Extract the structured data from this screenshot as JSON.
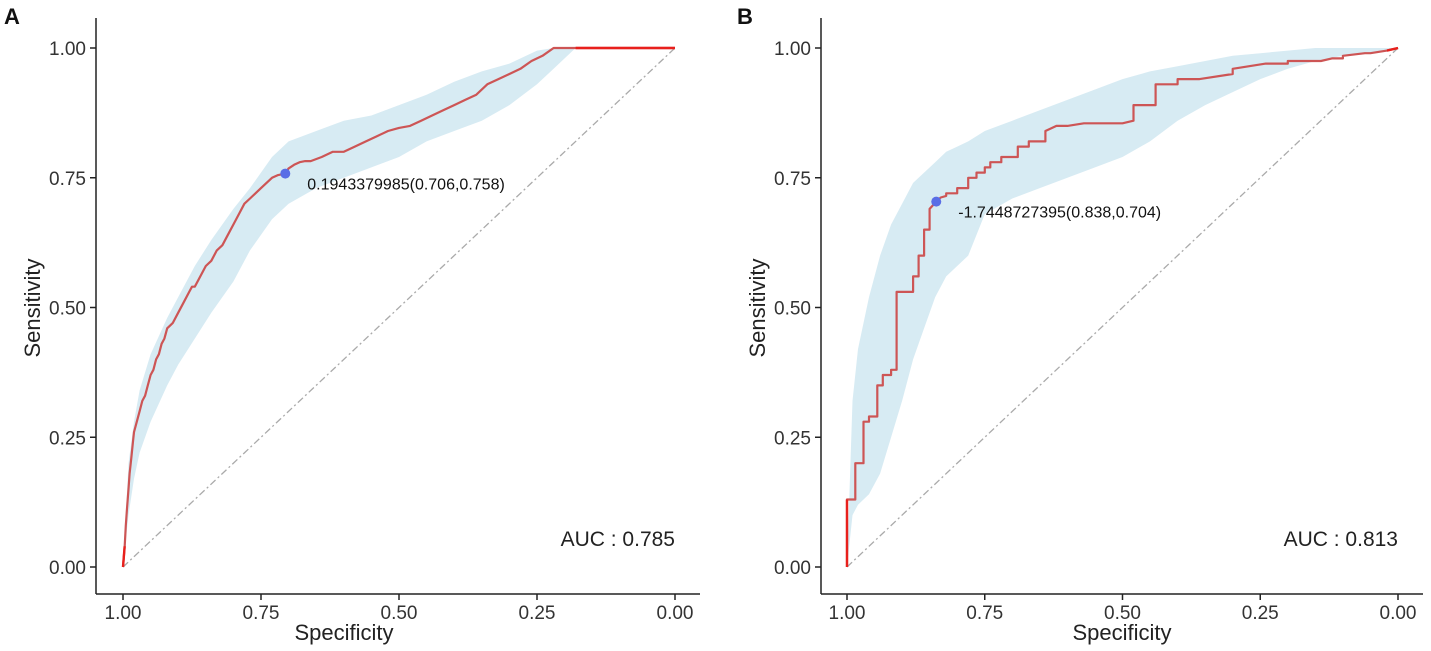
{
  "colors": {
    "curve": "#cd5555",
    "curve_end": "#e8201c",
    "ci_band": "#d7ebf3",
    "point": "#5a6ee6",
    "diagonal": "#aaaaaa",
    "axis": "#222222",
    "text": "#333333"
  },
  "chart_data": [
    {
      "panel_label": "A",
      "type": "line",
      "title": "",
      "xlabel": "Specificity",
      "ylabel": "Sensitivity",
      "xlim": [
        1.0,
        0.0
      ],
      "ylim": [
        0.0,
        1.0
      ],
      "x_ticks": [
        "1.00",
        "0.75",
        "0.50",
        "0.25",
        "0.00"
      ],
      "y_ticks": [
        "0.00",
        "0.25",
        "0.50",
        "0.75",
        "1.00"
      ],
      "auc_label": "AUC : 0.785",
      "cutoff": {
        "label": "0.1943379985(0.706,0.758)",
        "specificity": 0.706,
        "sensitivity": 0.758
      },
      "roc_curve": {
        "specificity": [
          1.0,
          0.997,
          0.995,
          0.993,
          0.99,
          0.988,
          0.985,
          0.982,
          0.98,
          0.975,
          0.97,
          0.965,
          0.96,
          0.955,
          0.95,
          0.945,
          0.94,
          0.935,
          0.93,
          0.925,
          0.92,
          0.91,
          0.9,
          0.89,
          0.88,
          0.875,
          0.87,
          0.86,
          0.85,
          0.84,
          0.83,
          0.82,
          0.81,
          0.8,
          0.79,
          0.78,
          0.77,
          0.76,
          0.75,
          0.74,
          0.73,
          0.72,
          0.706,
          0.7,
          0.69,
          0.68,
          0.67,
          0.66,
          0.64,
          0.62,
          0.6,
          0.58,
          0.56,
          0.54,
          0.52,
          0.5,
          0.48,
          0.46,
          0.44,
          0.42,
          0.4,
          0.38,
          0.36,
          0.34,
          0.32,
          0.3,
          0.28,
          0.26,
          0.24,
          0.22,
          0.2,
          0.18,
          0.0
        ],
        "sensitivity": [
          0.0,
          0.04,
          0.08,
          0.11,
          0.15,
          0.18,
          0.21,
          0.24,
          0.26,
          0.28,
          0.3,
          0.32,
          0.33,
          0.35,
          0.37,
          0.38,
          0.4,
          0.41,
          0.43,
          0.44,
          0.46,
          0.47,
          0.49,
          0.51,
          0.53,
          0.54,
          0.54,
          0.56,
          0.58,
          0.59,
          0.61,
          0.62,
          0.64,
          0.66,
          0.68,
          0.7,
          0.71,
          0.72,
          0.73,
          0.74,
          0.75,
          0.755,
          0.758,
          0.768,
          0.775,
          0.78,
          0.782,
          0.782,
          0.79,
          0.8,
          0.8,
          0.81,
          0.82,
          0.83,
          0.84,
          0.846,
          0.85,
          0.86,
          0.87,
          0.88,
          0.89,
          0.9,
          0.91,
          0.93,
          0.94,
          0.95,
          0.96,
          0.975,
          0.985,
          1.0,
          1.0,
          1.0,
          1.0
        ]
      },
      "ci_band": {
        "specificity": [
          1.0,
          0.99,
          0.98,
          0.97,
          0.95,
          0.92,
          0.9,
          0.87,
          0.84,
          0.8,
          0.77,
          0.73,
          0.7,
          0.65,
          0.6,
          0.55,
          0.5,
          0.45,
          0.4,
          0.35,
          0.3,
          0.25,
          0.22,
          0.2,
          0.18,
          0.0
        ],
        "upper": [
          0.0,
          0.2,
          0.28,
          0.34,
          0.41,
          0.48,
          0.52,
          0.58,
          0.63,
          0.69,
          0.73,
          0.79,
          0.82,
          0.84,
          0.86,
          0.87,
          0.89,
          0.91,
          0.935,
          0.955,
          0.97,
          0.995,
          1.0,
          1.0,
          1.0,
          1.0
        ],
        "lower": [
          0.0,
          0.1,
          0.17,
          0.22,
          0.28,
          0.35,
          0.39,
          0.44,
          0.49,
          0.55,
          0.61,
          0.67,
          0.7,
          0.73,
          0.75,
          0.77,
          0.79,
          0.82,
          0.84,
          0.86,
          0.89,
          0.93,
          0.96,
          0.98,
          1.0,
          1.0
        ]
      }
    },
    {
      "panel_label": "B",
      "type": "line",
      "title": "",
      "xlabel": "Specificity",
      "ylabel": "Sensitivity",
      "xlim": [
        1.0,
        0.0
      ],
      "ylim": [
        0.0,
        1.0
      ],
      "x_ticks": [
        "1.00",
        "0.75",
        "0.50",
        "0.25",
        "0.00"
      ],
      "y_ticks": [
        "0.00",
        "0.25",
        "0.50",
        "0.75",
        "1.00"
      ],
      "auc_label": "AUC : 0.813",
      "cutoff": {
        "label": "-1.7448727395(0.838,0.704)",
        "specificity": 0.838,
        "sensitivity": 0.704
      },
      "roc_curve": {
        "specificity": [
          1.0,
          1.0,
          0.985,
          0.985,
          0.97,
          0.97,
          0.96,
          0.96,
          0.945,
          0.945,
          0.935,
          0.935,
          0.92,
          0.92,
          0.91,
          0.91,
          0.88,
          0.88,
          0.87,
          0.87,
          0.86,
          0.86,
          0.85,
          0.85,
          0.838,
          0.83,
          0.82,
          0.82,
          0.8,
          0.8,
          0.78,
          0.78,
          0.765,
          0.765,
          0.75,
          0.75,
          0.74,
          0.74,
          0.72,
          0.72,
          0.69,
          0.69,
          0.67,
          0.67,
          0.64,
          0.64,
          0.62,
          0.6,
          0.57,
          0.5,
          0.48,
          0.48,
          0.44,
          0.44,
          0.4,
          0.4,
          0.36,
          0.3,
          0.3,
          0.24,
          0.22,
          0.2,
          0.2,
          0.14,
          0.12,
          0.1,
          0.1,
          0.06,
          0.05,
          0.02,
          0.0
        ],
        "sensitivity": [
          0.0,
          0.13,
          0.13,
          0.2,
          0.2,
          0.28,
          0.28,
          0.29,
          0.29,
          0.35,
          0.35,
          0.37,
          0.37,
          0.38,
          0.38,
          0.53,
          0.53,
          0.56,
          0.56,
          0.6,
          0.6,
          0.65,
          0.65,
          0.69,
          0.704,
          0.712,
          0.715,
          0.72,
          0.72,
          0.73,
          0.73,
          0.75,
          0.75,
          0.76,
          0.76,
          0.77,
          0.77,
          0.78,
          0.78,
          0.79,
          0.79,
          0.81,
          0.81,
          0.82,
          0.82,
          0.84,
          0.85,
          0.85,
          0.855,
          0.855,
          0.86,
          0.89,
          0.89,
          0.93,
          0.93,
          0.94,
          0.94,
          0.95,
          0.96,
          0.97,
          0.97,
          0.97,
          0.975,
          0.975,
          0.98,
          0.98,
          0.985,
          0.99,
          0.99,
          0.995,
          1.0
        ]
      },
      "ci_band": {
        "specificity": [
          1.0,
          0.99,
          0.98,
          0.96,
          0.94,
          0.92,
          0.9,
          0.88,
          0.86,
          0.84,
          0.82,
          0.8,
          0.78,
          0.75,
          0.7,
          0.65,
          0.6,
          0.55,
          0.5,
          0.45,
          0.4,
          0.35,
          0.3,
          0.25,
          0.2,
          0.15,
          0.1,
          0.05,
          0.0
        ],
        "upper": [
          0.0,
          0.32,
          0.42,
          0.52,
          0.6,
          0.66,
          0.7,
          0.74,
          0.76,
          0.78,
          0.8,
          0.81,
          0.82,
          0.84,
          0.86,
          0.88,
          0.9,
          0.92,
          0.94,
          0.955,
          0.965,
          0.975,
          0.985,
          0.99,
          0.995,
          1.0,
          1.0,
          1.0,
          1.0
        ],
        "lower": [
          0.0,
          0.1,
          0.12,
          0.14,
          0.18,
          0.25,
          0.32,
          0.4,
          0.46,
          0.52,
          0.56,
          0.58,
          0.6,
          0.68,
          0.71,
          0.73,
          0.75,
          0.77,
          0.79,
          0.82,
          0.86,
          0.89,
          0.915,
          0.94,
          0.96,
          0.975,
          0.985,
          0.99,
          1.0
        ]
      }
    }
  ]
}
